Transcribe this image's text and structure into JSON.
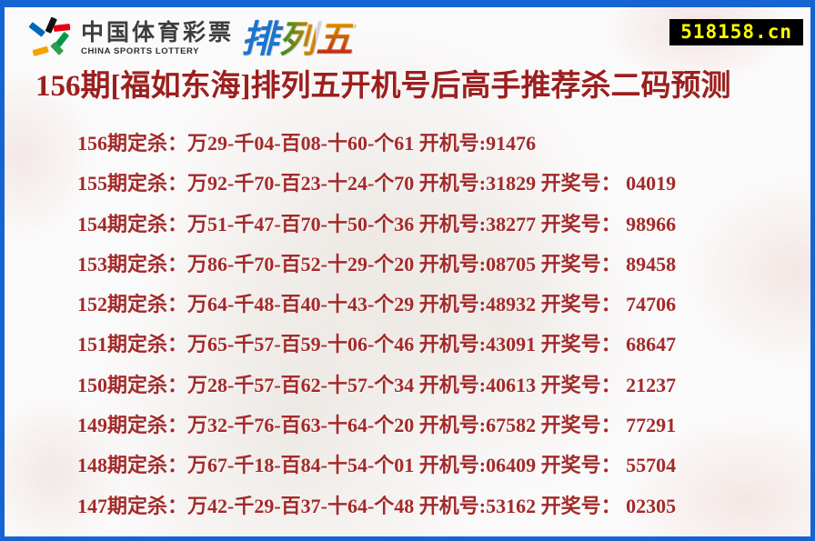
{
  "page": {
    "title": "156期[福如东海]排列五开机号后高手推荐杀二码预测",
    "domain_badge": "518158.cn"
  },
  "brand": {
    "logo_cn": "中国体育彩票",
    "logo_en": "CHINA SPORTS LOTTERY",
    "product_chars": [
      "排",
      "列",
      "五"
    ]
  },
  "labels": {
    "issue_suffix": "期定杀：",
    "machine_prefix": "开机号:",
    "draw_prefix": "开奖号："
  },
  "colors": {
    "border_blue": "#1663d3",
    "title_red": "#9c1f1f",
    "row_red": "#a32a2a",
    "badge_bg": "#000000",
    "badge_text": "#ffff00"
  },
  "rows": [
    {
      "issue": "156",
      "kills": "万29-千04-百08-十60-个61",
      "machine": "91476",
      "draw": null
    },
    {
      "issue": "155",
      "kills": "万92-千70-百23-十24-个70",
      "machine": "31829",
      "draw": "04019"
    },
    {
      "issue": "154",
      "kills": "万51-千47-百70-十50-个36",
      "machine": "38277",
      "draw": "98966"
    },
    {
      "issue": "153",
      "kills": "万86-千70-百52-十29-个20",
      "machine": "08705",
      "draw": "89458"
    },
    {
      "issue": "152",
      "kills": "万64-千48-百40-十43-个29",
      "machine": "48932",
      "draw": "74706"
    },
    {
      "issue": "151",
      "kills": "万65-千57-百59-十06-个46",
      "machine": "43091",
      "draw": "68647"
    },
    {
      "issue": "150",
      "kills": "万28-千57-百62-十57-个34",
      "machine": "40613",
      "draw": "21237"
    },
    {
      "issue": "149",
      "kills": "万32-千76-百63-十64-个20",
      "machine": "67582",
      "draw": "77291"
    },
    {
      "issue": "148",
      "kills": "万67-千18-百84-十54-个01",
      "machine": "06409",
      "draw": "55704"
    },
    {
      "issue": "147",
      "kills": "万42-千29-百37-十64-个48",
      "machine": "53162",
      "draw": "02305"
    }
  ]
}
